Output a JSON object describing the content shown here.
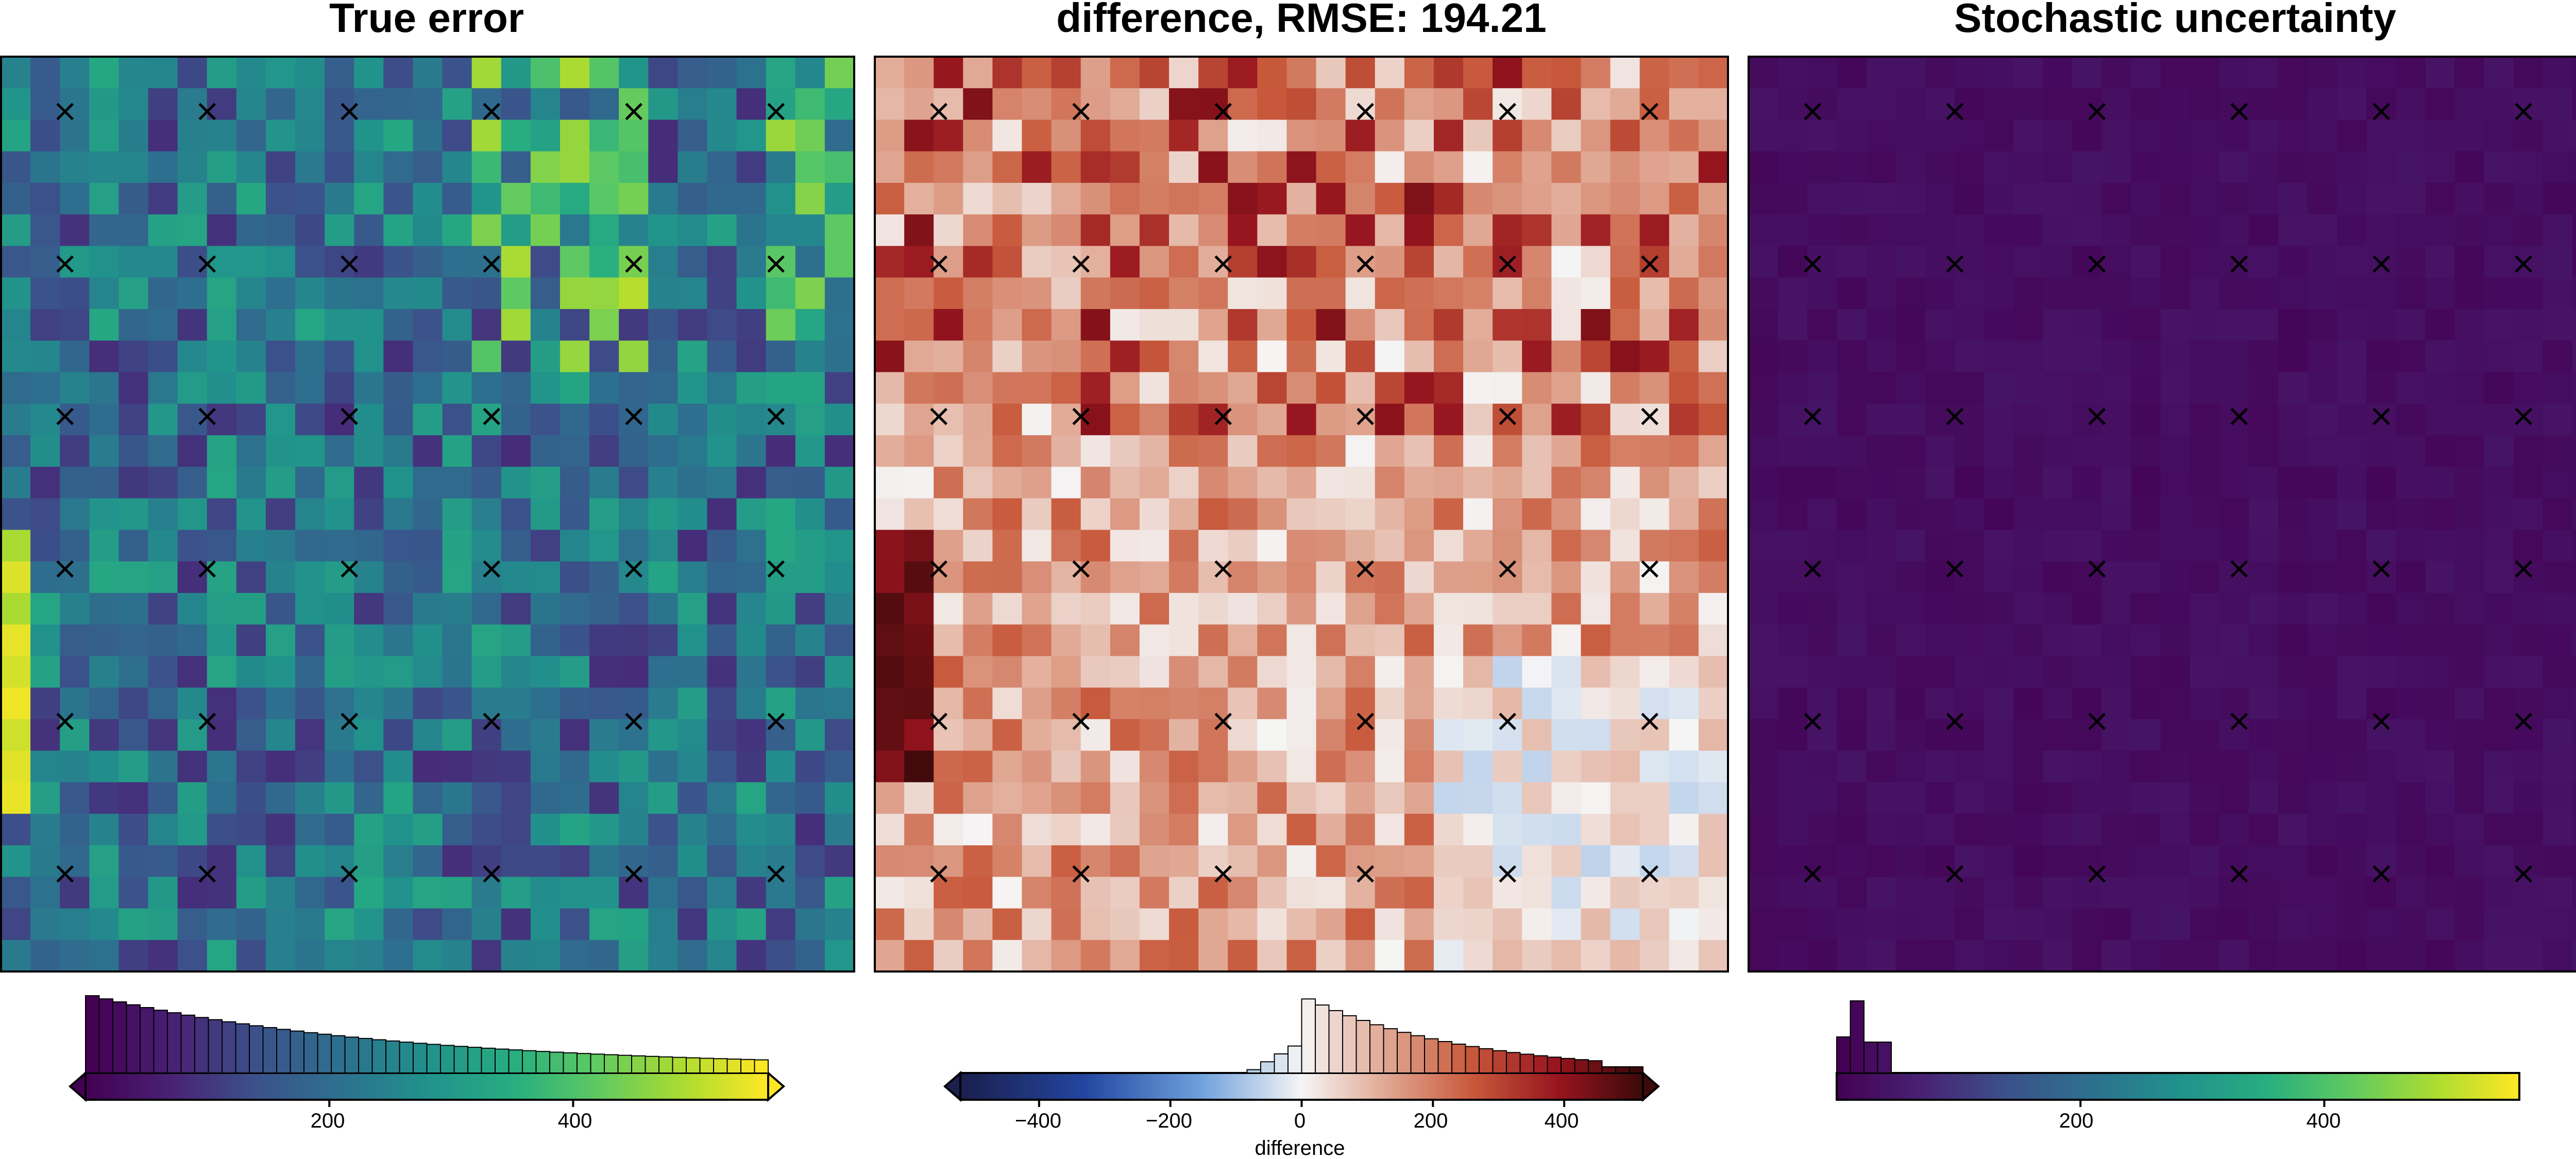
{
  "chart_data": [
    {
      "type": "heatmap",
      "title": "True error",
      "colormap": "viridis",
      "grid_cells": [
        29,
        29
      ],
      "colorbar": {
        "range": [
          0,
          560
        ],
        "ticks": [
          200,
          400
        ],
        "tick_labels": [
          "200",
          "400"
        ],
        "label": "",
        "extend": "both",
        "histogram": true
      },
      "markers": {
        "symbol": "x",
        "color": "#000000",
        "grid": [
          6,
          6
        ]
      }
    },
    {
      "type": "heatmap",
      "title": "difference, RMSE: 194.21",
      "colormap": "diverging blue-white-red",
      "grid_cells": [
        29,
        29
      ],
      "colorbar": {
        "range": [
          -520,
          520
        ],
        "ticks": [
          -400,
          -200,
          0,
          200,
          400
        ],
        "tick_labels": [
          "−400",
          "−200",
          "0",
          "200",
          "400"
        ],
        "label": "difference",
        "extend": "both",
        "histogram": true
      },
      "markers": {
        "symbol": "x",
        "color": "#000000",
        "grid": [
          6,
          6
        ]
      }
    },
    {
      "type": "heatmap",
      "title": "Stochastic uncertainty",
      "colormap": "viridis",
      "grid_cells": [
        29,
        29
      ],
      "colorbar": {
        "range": [
          0,
          560
        ],
        "ticks": [
          200,
          400
        ],
        "tick_labels": [
          "200",
          "400"
        ],
        "label": "",
        "extend": "neither",
        "histogram": true
      },
      "markers": {
        "symbol": "x",
        "color": "#000000",
        "grid": [
          6,
          6
        ]
      }
    }
  ],
  "colors": {
    "viridis_low": "#440154",
    "viridis_mid": "#21918c",
    "viridis_high": "#fde725",
    "diverging_low": "#1a1f4d",
    "diverging_mid": "#f5f5f5",
    "diverging_high": "#3d0a0a"
  }
}
